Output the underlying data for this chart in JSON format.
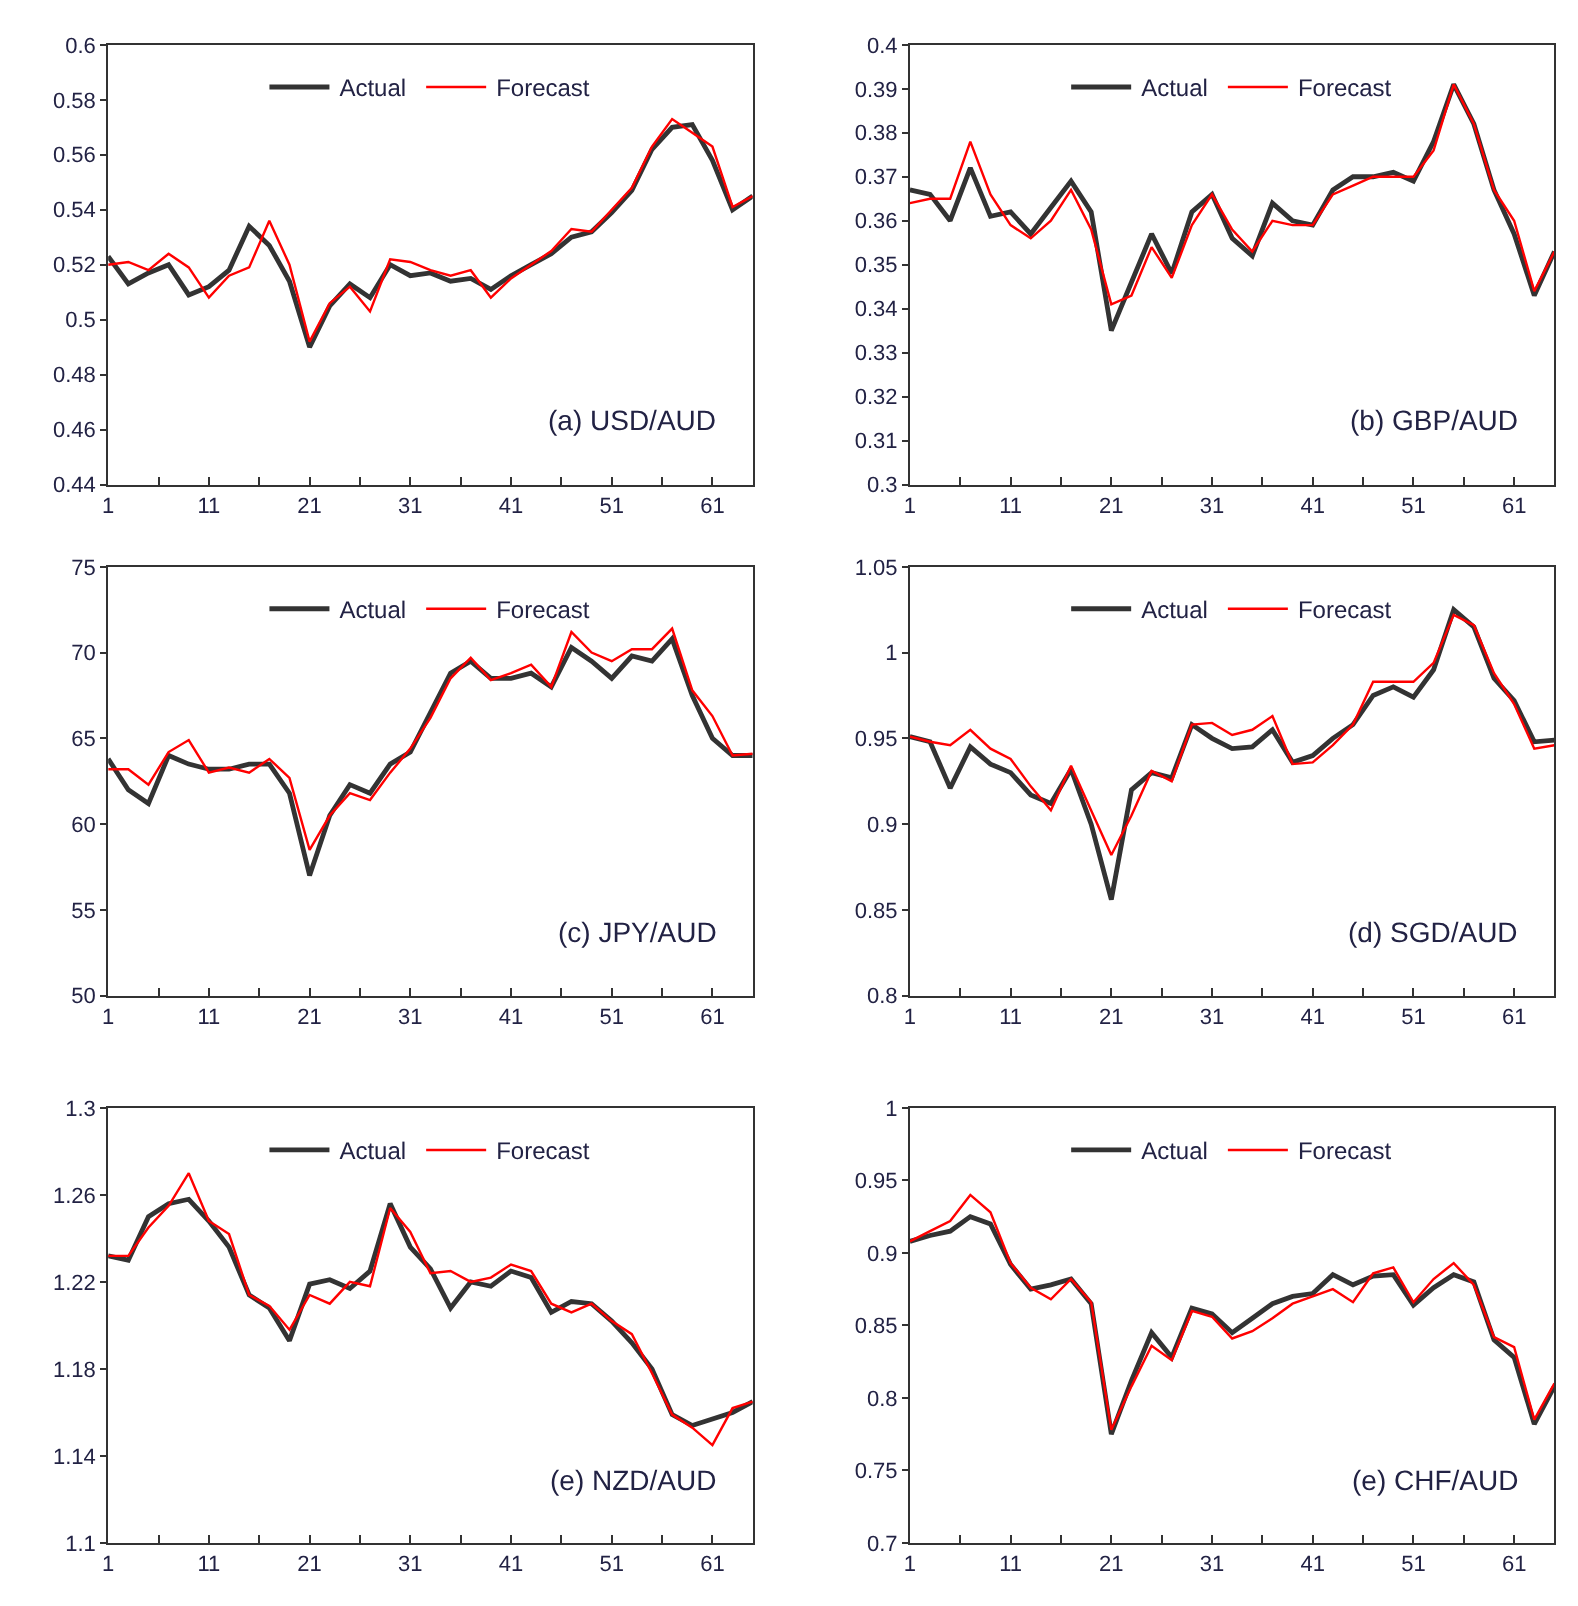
{
  "chart_data": [
    {
      "type": "line",
      "annotations": [
        "(a) USD/AUD"
      ],
      "legend": "top",
      "marker": "none",
      "line_style": "solid",
      "x": [
        1,
        3,
        5,
        7,
        9,
        11,
        13,
        15,
        17,
        19,
        21,
        23,
        25,
        27,
        29,
        31,
        33,
        35,
        37,
        39,
        41,
        43,
        45,
        47,
        49,
        51,
        53,
        55,
        57,
        59,
        61,
        63,
        65
      ],
      "xlim": [
        1,
        65
      ],
      "xticks": [
        1,
        {
          "value": 6,
          "label": null
        },
        11,
        {
          "value": 16,
          "label": null
        },
        21,
        {
          "value": 26,
          "label": null
        },
        31,
        {
          "value": 36,
          "label": null
        },
        41,
        {
          "value": 46,
          "label": null
        },
        51,
        {
          "value": 56,
          "label": null
        },
        61
      ],
      "ylim": [
        0.44,
        0.6
      ],
      "yticks": [
        0.44,
        0.46,
        0.48,
        0.5,
        0.52,
        0.54,
        0.56,
        0.58,
        0.6
      ],
      "series": [
        {
          "name": "Actual",
          "color": "#333333",
          "values": [
            0.523,
            0.513,
            0.517,
            0.52,
            0.509,
            0.512,
            0.518,
            0.534,
            0.527,
            0.514,
            0.49,
            0.505,
            0.513,
            0.508,
            0.52,
            0.516,
            0.517,
            0.514,
            0.515,
            0.511,
            0.516,
            0.52,
            0.524,
            0.53,
            0.532,
            0.539,
            0.547,
            0.562,
            0.57,
            0.571,
            0.558,
            0.54,
            0.545
          ]
        },
        {
          "name": "Forecast",
          "color": "#ff0000",
          "values": [
            0.52,
            0.521,
            0.518,
            0.524,
            0.519,
            0.508,
            0.516,
            0.519,
            0.536,
            0.52,
            0.492,
            0.506,
            0.512,
            0.503,
            0.522,
            0.521,
            0.518,
            0.516,
            0.518,
            0.508,
            0.515,
            0.52,
            0.525,
            0.533,
            0.532,
            0.54,
            0.548,
            0.563,
            0.573,
            0.568,
            0.563,
            0.541,
            0.545
          ]
        }
      ]
    },
    {
      "type": "line",
      "annotations": [
        "(b) GBP/AUD"
      ],
      "legend": "top",
      "marker": "none",
      "line_style": "solid",
      "x": [
        1,
        3,
        5,
        7,
        9,
        11,
        13,
        15,
        17,
        19,
        21,
        23,
        25,
        27,
        29,
        31,
        33,
        35,
        37,
        39,
        41,
        43,
        45,
        47,
        49,
        51,
        53,
        55,
        57,
        59,
        61,
        63,
        65
      ],
      "xlim": [
        1,
        65
      ],
      "xticks": [
        1,
        {
          "value": 6,
          "label": null
        },
        11,
        {
          "value": 16,
          "label": null
        },
        21,
        {
          "value": 26,
          "label": null
        },
        31,
        {
          "value": 36,
          "label": null
        },
        41,
        {
          "value": 46,
          "label": null
        },
        51,
        {
          "value": 56,
          "label": null
        },
        61
      ],
      "ylim": [
        0.3,
        0.4
      ],
      "yticks": [
        0.3,
        0.31,
        0.32,
        0.33,
        0.34,
        0.35,
        0.36,
        0.37,
        0.38,
        0.39,
        0.4
      ],
      "series": [
        {
          "name": "Actual",
          "color": "#333333",
          "values": [
            0.367,
            0.366,
            0.36,
            0.372,
            0.361,
            0.362,
            0.357,
            0.363,
            0.369,
            0.362,
            0.335,
            0.346,
            0.357,
            0.348,
            0.362,
            0.366,
            0.356,
            0.352,
            0.364,
            0.36,
            0.359,
            0.367,
            0.37,
            0.37,
            0.371,
            0.369,
            0.378,
            0.391,
            0.382,
            0.367,
            0.357,
            0.343,
            0.353
          ]
        },
        {
          "name": "Forecast",
          "color": "#ff0000",
          "values": [
            0.364,
            0.365,
            0.365,
            0.378,
            0.366,
            0.359,
            0.356,
            0.36,
            0.367,
            0.358,
            0.341,
            0.343,
            0.354,
            0.347,
            0.359,
            0.366,
            0.358,
            0.353,
            0.36,
            0.359,
            0.359,
            0.366,
            0.368,
            0.37,
            0.37,
            0.37,
            0.376,
            0.391,
            0.382,
            0.367,
            0.36,
            0.344,
            0.353
          ]
        }
      ]
    },
    {
      "type": "line",
      "annotations": [
        "(c) JPY/AUD"
      ],
      "legend": "top",
      "marker": "none",
      "line_style": "solid",
      "x": [
        1,
        3,
        5,
        7,
        9,
        11,
        13,
        15,
        17,
        19,
        21,
        23,
        25,
        27,
        29,
        31,
        33,
        35,
        37,
        39,
        41,
        43,
        45,
        47,
        49,
        51,
        53,
        55,
        57,
        59,
        61,
        63,
        65
      ],
      "xlim": [
        1,
        65
      ],
      "xticks": [
        1,
        {
          "value": 6,
          "label": null
        },
        11,
        {
          "value": 16,
          "label": null
        },
        21,
        {
          "value": 26,
          "label": null
        },
        31,
        {
          "value": 36,
          "label": null
        },
        41,
        {
          "value": 46,
          "label": null
        },
        51,
        {
          "value": 56,
          "label": null
        },
        61
      ],
      "ylim": [
        50,
        75
      ],
      "yticks": [
        50,
        55,
        60,
        65,
        70,
        75
      ],
      "series": [
        {
          "name": "Actual",
          "color": "#333333",
          "values": [
            63.8,
            62,
            61.2,
            64,
            63.5,
            63.2,
            63.2,
            63.5,
            63.5,
            61.8,
            57,
            60.5,
            62.3,
            61.8,
            63.5,
            64.2,
            66.5,
            68.8,
            69.5,
            68.5,
            68.5,
            68.8,
            68,
            70.3,
            69.5,
            68.5,
            69.8,
            69.5,
            70.8,
            67.5,
            65,
            64,
            64
          ]
        },
        {
          "name": "Forecast",
          "color": "#ff0000",
          "values": [
            63.2,
            63.2,
            62.3,
            64.2,
            64.9,
            63,
            63.3,
            63,
            63.8,
            62.7,
            58.5,
            60.5,
            61.8,
            61.4,
            63,
            64.4,
            66.2,
            68.5,
            69.7,
            68.4,
            68.8,
            69.3,
            68,
            71.2,
            70,
            69.5,
            70.2,
            70.2,
            71.4,
            67.8,
            66.3,
            64,
            64.1
          ]
        }
      ]
    },
    {
      "type": "line",
      "annotations": [
        "(d) SGD/AUD"
      ],
      "legend": "top",
      "marker": "none",
      "line_style": "solid",
      "x": [
        1,
        3,
        5,
        7,
        9,
        11,
        13,
        15,
        17,
        19,
        21,
        23,
        25,
        27,
        29,
        31,
        33,
        35,
        37,
        39,
        41,
        43,
        45,
        47,
        49,
        51,
        53,
        55,
        57,
        59,
        61,
        63,
        65
      ],
      "xlim": [
        1,
        65
      ],
      "xticks": [
        1,
        {
          "value": 6,
          "label": null
        },
        11,
        {
          "value": 16,
          "label": null
        },
        21,
        {
          "value": 26,
          "label": null
        },
        31,
        {
          "value": 36,
          "label": null
        },
        41,
        {
          "value": 46,
          "label": null
        },
        51,
        {
          "value": 56,
          "label": null
        },
        61
      ],
      "ylim": [
        0.8,
        1.05
      ],
      "yticks": [
        0.8,
        0.85,
        0.9,
        0.95,
        1,
        1.05
      ],
      "series": [
        {
          "name": "Actual",
          "color": "#333333",
          "values": [
            0.951,
            0.948,
            0.921,
            0.945,
            0.935,
            0.93,
            0.917,
            0.912,
            0.932,
            0.9,
            0.856,
            0.92,
            0.93,
            0.927,
            0.958,
            0.95,
            0.944,
            0.945,
            0.955,
            0.936,
            0.94,
            0.95,
            0.958,
            0.975,
            0.98,
            0.974,
            0.99,
            1.025,
            1.015,
            0.985,
            0.972,
            0.948,
            0.949
          ]
        },
        {
          "name": "Forecast",
          "color": "#ff0000",
          "values": [
            0.951,
            0.948,
            0.946,
            0.955,
            0.944,
            0.938,
            0.922,
            0.908,
            0.934,
            0.908,
            0.882,
            0.905,
            0.931,
            0.925,
            0.958,
            0.959,
            0.952,
            0.955,
            0.963,
            0.935,
            0.936,
            0.946,
            0.958,
            0.983,
            0.983,
            0.983,
            0.994,
            1.022,
            1.016,
            0.988,
            0.97,
            0.944,
            0.946
          ]
        }
      ]
    },
    {
      "type": "line",
      "annotations": [
        "(e) NZD/AUD"
      ],
      "legend": "top",
      "marker": "none",
      "line_style": "solid",
      "x": [
        1,
        3,
        5,
        7,
        9,
        11,
        13,
        15,
        17,
        19,
        21,
        23,
        25,
        27,
        29,
        31,
        33,
        35,
        37,
        39,
        41,
        43,
        45,
        47,
        49,
        51,
        53,
        55,
        57,
        59,
        61,
        63,
        65
      ],
      "xlim": [
        1,
        65
      ],
      "xticks": [
        1,
        {
          "value": 6,
          "label": null
        },
        11,
        {
          "value": 16,
          "label": null
        },
        21,
        {
          "value": 26,
          "label": null
        },
        31,
        {
          "value": 36,
          "label": null
        },
        41,
        {
          "value": 46,
          "label": null
        },
        51,
        {
          "value": 56,
          "label": null
        },
        61
      ],
      "ylim": [
        1.1,
        1.3
      ],
      "yticks": [
        1.1,
        1.14,
        1.18,
        1.22,
        1.26,
        1.3
      ],
      "series": [
        {
          "name": "Actual",
          "color": "#333333",
          "values": [
            1.232,
            1.23,
            1.25,
            1.256,
            1.258,
            1.248,
            1.236,
            1.214,
            1.208,
            1.193,
            1.219,
            1.221,
            1.217,
            1.225,
            1.256,
            1.236,
            1.226,
            1.208,
            1.22,
            1.218,
            1.225,
            1.222,
            1.206,
            1.211,
            1.21,
            1.202,
            1.192,
            1.18,
            1.159,
            1.154,
            1.157,
            1.16,
            1.165
          ]
        },
        {
          "name": "Forecast",
          "color": "#ff0000",
          "values": [
            1.232,
            1.232,
            1.245,
            1.255,
            1.27,
            1.248,
            1.242,
            1.214,
            1.209,
            1.198,
            1.214,
            1.21,
            1.22,
            1.218,
            1.254,
            1.243,
            1.224,
            1.225,
            1.22,
            1.222,
            1.228,
            1.225,
            1.21,
            1.206,
            1.21,
            1.202,
            1.196,
            1.178,
            1.159,
            1.153,
            1.145,
            1.162,
            1.165
          ]
        }
      ]
    },
    {
      "type": "line",
      "annotations": [
        "(e) CHF/AUD"
      ],
      "legend": "top",
      "marker": "none",
      "line_style": "solid",
      "x": [
        1,
        3,
        5,
        7,
        9,
        11,
        13,
        15,
        17,
        19,
        21,
        23,
        25,
        27,
        29,
        31,
        33,
        35,
        37,
        39,
        41,
        43,
        45,
        47,
        49,
        51,
        53,
        55,
        57,
        59,
        61,
        63,
        65
      ],
      "xlim": [
        1,
        65
      ],
      "xticks": [
        1,
        {
          "value": 6,
          "label": null
        },
        11,
        {
          "value": 16,
          "label": null
        },
        21,
        {
          "value": 26,
          "label": null
        },
        31,
        {
          "value": 36,
          "label": null
        },
        41,
        {
          "value": 46,
          "label": null
        },
        51,
        {
          "value": 56,
          "label": null
        },
        61
      ],
      "ylim": [
        0.7,
        1
      ],
      "yticks": [
        0.7,
        0.75,
        0.8,
        0.85,
        0.9,
        0.95,
        1
      ],
      "series": [
        {
          "name": "Actual",
          "color": "#333333",
          "values": [
            0.908,
            0.912,
            0.915,
            0.925,
            0.92,
            0.892,
            0.875,
            0.878,
            0.882,
            0.865,
            0.775,
            0.812,
            0.845,
            0.828,
            0.862,
            0.858,
            0.845,
            0.855,
            0.865,
            0.87,
            0.872,
            0.885,
            0.878,
            0.884,
            0.885,
            0.864,
            0.876,
            0.885,
            0.88,
            0.84,
            0.828,
            0.782,
            0.808
          ]
        },
        {
          "name": "Forecast",
          "color": "#ff0000",
          "values": [
            0.908,
            0.915,
            0.922,
            0.94,
            0.928,
            0.893,
            0.876,
            0.868,
            0.882,
            0.866,
            0.778,
            0.808,
            0.836,
            0.826,
            0.86,
            0.856,
            0.841,
            0.846,
            0.855,
            0.865,
            0.87,
            0.875,
            0.866,
            0.886,
            0.89,
            0.866,
            0.882,
            0.893,
            0.878,
            0.842,
            0.835,
            0.785,
            0.81
          ]
        }
      ]
    }
  ]
}
